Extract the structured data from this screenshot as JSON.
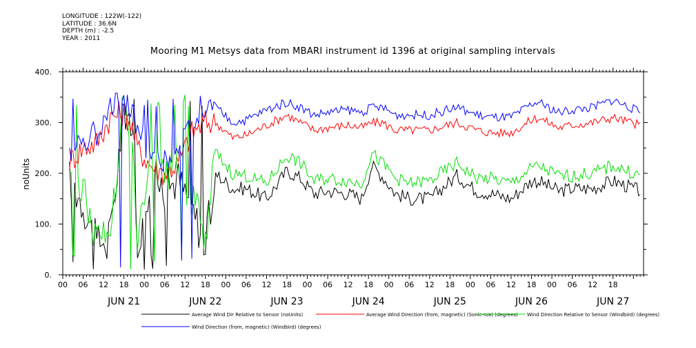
{
  "meta": {
    "longitude": "LONGITUDE : 122W(-122)",
    "latitude": "LATITUDE : 36.6N",
    "depth": "DEPTH (m) : -2.5",
    "year": "YEAR : 2011"
  },
  "chart_data": {
    "type": "line",
    "title": "Mooring M1 Metsys data from MBARI instrument id 1396 at original sampling intervals",
    "ylabel": "noUnits",
    "xlabel": "",
    "ylim": [
      0,
      400
    ],
    "yticks": [
      0,
      100,
      200,
      300,
      400
    ],
    "ytick_labels": [
      "0.",
      "100.",
      "200.",
      "300.",
      "400."
    ],
    "xlim": [
      "2011-06-20T18:00",
      "2011-06-27T21:00"
    ],
    "hour_tick_labels": [
      "00",
      "06",
      "12",
      "18",
      "00",
      "06",
      "12",
      "18",
      "00",
      "06",
      "12",
      "18",
      "00",
      "06",
      "12",
      "18",
      "00",
      "06",
      "12",
      "18",
      "00",
      "06",
      "12",
      "18",
      "00",
      "06",
      "12",
      "18"
    ],
    "day_labels": [
      "JUN 21",
      "JUN 22",
      "JUN 23",
      "JUN 24",
      "JUN 25",
      "JUN 26",
      "JUN 27"
    ],
    "grid": false,
    "legend_position": "bottom",
    "series": [
      {
        "name": "Average Wind Dir Relative to Sensor (noUnits)",
        "color": "#000000",
        "x": [
          "06-20 20:00",
          "06-21 00:00",
          "06-21 04:00",
          "06-21 08:00",
          "06-21 12:00",
          "06-21 14:00",
          "06-21 16:00",
          "06-21 20:00",
          "06-22 00:00",
          "06-22 04:00",
          "06-22 08:00",
          "06-22 12:00",
          "06-22 15:00",
          "06-22 20:00",
          "06-23 00:00",
          "06-23 06:00",
          "06-23 12:00",
          "06-23 16:00",
          "06-23 20:00",
          "06-24 00:00",
          "06-24 06:00",
          "06-24 10:00",
          "06-24 13:00",
          "06-24 16:00",
          "06-24 20:00",
          "06-25 00:00",
          "06-25 06:00",
          "06-25 14:00",
          "06-25 20:00",
          "06-26 00:00",
          "06-26 06:00",
          "06-26 12:00",
          "06-26 14:00",
          "06-26 20:00",
          "06-27 00:00",
          "06-27 06:00",
          "06-27 12:00",
          "06-27 20:00"
        ],
        "values": [
          190,
          140,
          60,
          80,
          330,
          310,
          60,
          200,
          170,
          190,
          130,
          60,
          200,
          170,
          170,
          150,
          205,
          190,
          160,
          165,
          160,
          150,
          215,
          195,
          160,
          150,
          150,
          195,
          165,
          160,
          150,
          185,
          185,
          165,
          170,
          170,
          185,
          165
        ]
      },
      {
        "name": "Average Wind Direction (from, magnetic) (Sonic-n/a) (degrees)",
        "color": "#ff0000",
        "x": [
          "06-20 20:00",
          "06-21 00:00",
          "06-21 04:00",
          "06-21 08:00",
          "06-21 12:00",
          "06-21 14:00",
          "06-21 16:00",
          "06-21 20:00",
          "06-22 00:00",
          "06-22 04:00",
          "06-22 08:00",
          "06-22 12:00",
          "06-22 15:00",
          "06-22 20:00",
          "06-23 00:00",
          "06-23 06:00",
          "06-23 12:00",
          "06-23 16:00",
          "06-23 20:00",
          "06-24 00:00",
          "06-24 06:00",
          "06-24 10:00",
          "06-24 13:00",
          "06-24 16:00",
          "06-24 20:00",
          "06-25 00:00",
          "06-25 06:00",
          "06-25 14:00",
          "06-25 20:00",
          "06-26 00:00",
          "06-26 06:00",
          "06-26 12:00",
          "06-26 14:00",
          "06-26 20:00",
          "06-27 00:00",
          "06-27 06:00",
          "06-27 12:00",
          "06-27 20:00"
        ],
        "values": [
          225,
          250,
          260,
          310,
          320,
          300,
          250,
          215,
          200,
          220,
          280,
          300,
          300,
          270,
          275,
          295,
          315,
          300,
          285,
          290,
          295,
          290,
          300,
          300,
          285,
          285,
          285,
          300,
          285,
          280,
          280,
          305,
          310,
          290,
          295,
          300,
          310,
          295
        ]
      },
      {
        "name": "Wind Direction Relative to Sensor (Windbird) (degrees)",
        "color": "#00e000",
        "x": [
          "06-20 20:00",
          "06-21 00:00",
          "06-21 04:00",
          "06-21 08:00",
          "06-21 12:00",
          "06-21 14:00",
          "06-21 16:00",
          "06-21 20:00",
          "06-22 00:00",
          "06-22 04:00",
          "06-22 08:00",
          "06-22 12:00",
          "06-22 15:00",
          "06-22 20:00",
          "06-23 00:00",
          "06-23 06:00",
          "06-23 12:00",
          "06-23 16:00",
          "06-23 20:00",
          "06-24 00:00",
          "06-24 06:00",
          "06-24 10:00",
          "06-24 13:00",
          "06-24 16:00",
          "06-24 20:00",
          "06-25 00:00",
          "06-25 06:00",
          "06-25 14:00",
          "06-25 20:00",
          "06-26 00:00",
          "06-26 06:00",
          "06-26 12:00",
          "06-26 14:00",
          "06-26 20:00",
          "06-27 00:00",
          "06-27 06:00",
          "06-27 12:00",
          "06-27 20:00"
        ],
        "values": [
          215,
          170,
          70,
          90,
          320,
          300,
          70,
          210,
          190,
          210,
          150,
          80,
          240,
          200,
          195,
          180,
          235,
          220,
          185,
          190,
          185,
          180,
          240,
          220,
          190,
          180,
          185,
          220,
          190,
          190,
          180,
          210,
          215,
          195,
          195,
          200,
          215,
          195
        ]
      },
      {
        "name": "Wind Direction (from, magnetic) (Windbird) (degrees)",
        "color": "#0000ff",
        "x": [
          "06-20 20:00",
          "06-21 00:00",
          "06-21 04:00",
          "06-21 08:00",
          "06-21 12:00",
          "06-21 14:00",
          "06-21 16:00",
          "06-21 20:00",
          "06-22 00:00",
          "06-22 04:00",
          "06-22 08:00",
          "06-22 12:00",
          "06-22 15:00",
          "06-22 20:00",
          "06-23 00:00",
          "06-23 06:00",
          "06-23 12:00",
          "06-23 16:00",
          "06-23 20:00",
          "06-24 00:00",
          "06-24 06:00",
          "06-24 10:00",
          "06-24 13:00",
          "06-24 16:00",
          "06-24 20:00",
          "06-25 00:00",
          "06-25 06:00",
          "06-25 14:00",
          "06-25 20:00",
          "06-26 00:00",
          "06-26 06:00",
          "06-26 12:00",
          "06-26 14:00",
          "06-26 20:00",
          "06-27 00:00",
          "06-27 06:00",
          "06-27 12:00",
          "06-27 20:00"
        ],
        "values": [
          245,
          270,
          280,
          340,
          345,
          330,
          280,
          240,
          225,
          245,
          310,
          330,
          330,
          300,
          305,
          325,
          340,
          330,
          315,
          320,
          325,
          320,
          330,
          330,
          315,
          315,
          315,
          330,
          315,
          310,
          310,
          335,
          340,
          320,
          325,
          330,
          345,
          320
        ]
      }
    ]
  }
}
